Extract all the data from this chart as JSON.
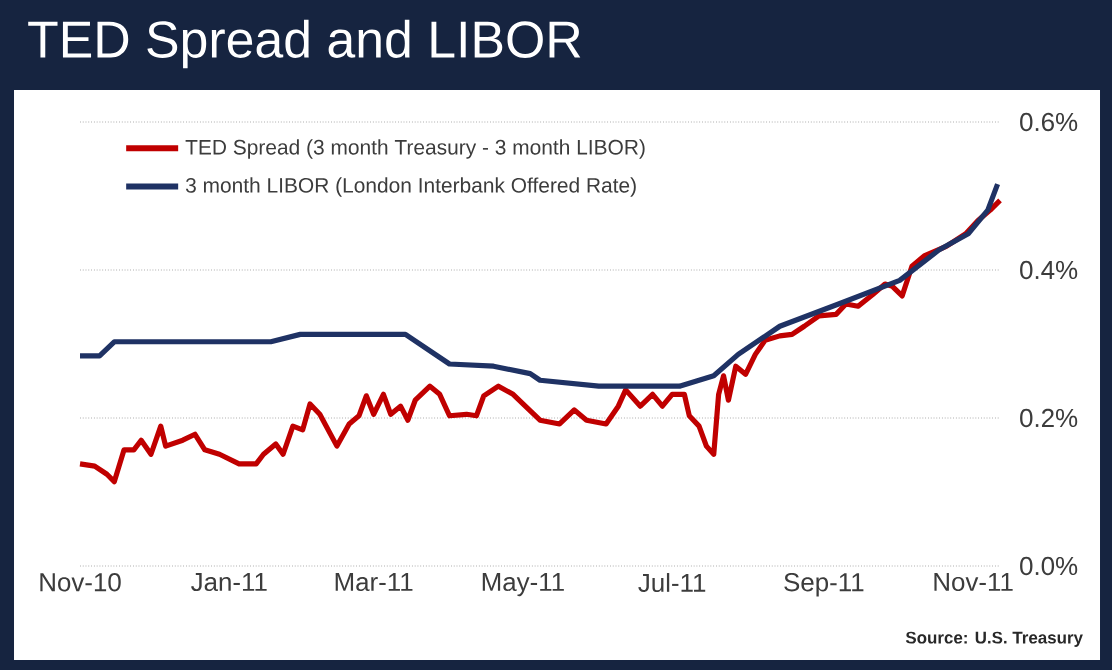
{
  "chart_data": {
    "type": "line",
    "title": "TED Spread and LIBOR",
    "x": [
      "2010-11-01",
      "2010-11-07",
      "2010-11-12",
      "2010-11-15",
      "2010-11-19",
      "2010-11-23",
      "2010-11-26",
      "2010-11-30",
      "2010-12-04",
      "2010-12-06",
      "2010-12-13",
      "2010-12-18",
      "2010-12-22",
      "2010-12-28",
      "2011-01-05",
      "2011-01-12",
      "2011-01-15",
      "2011-01-20",
      "2011-01-23",
      "2011-01-27",
      "2011-01-31",
      "2011-02-03",
      "2011-02-07",
      "2011-02-14",
      "2011-02-19",
      "2011-02-23",
      "2011-02-26",
      "2011-03-01",
      "2011-03-05",
      "2011-03-08",
      "2011-03-12",
      "2011-03-15",
      "2011-03-18",
      "2011-03-24",
      "2011-03-28",
      "2011-04-01",
      "2011-04-08",
      "2011-04-12",
      "2011-04-15",
      "2011-04-21",
      "2011-04-27",
      "2011-05-02",
      "2011-05-08",
      "2011-05-16",
      "2011-05-22",
      "2011-05-27",
      "2011-06-04",
      "2011-06-09",
      "2011-06-12",
      "2011-06-18",
      "2011-06-23",
      "2011-06-27",
      "2011-07-01",
      "2011-07-06",
      "2011-07-08",
      "2011-07-12",
      "2011-07-15",
      "2011-07-18",
      "2011-07-20",
      "2011-07-22",
      "2011-07-24",
      "2011-07-27",
      "2011-07-31",
      "2011-08-04",
      "2011-08-08",
      "2011-08-14",
      "2011-08-19",
      "2011-08-24",
      "2011-08-30",
      "2011-09-06",
      "2011-09-10",
      "2011-09-15",
      "2011-09-21",
      "2011-09-26",
      "2011-09-29",
      "2011-10-03",
      "2011-10-07",
      "2011-10-12",
      "2011-10-21",
      "2011-10-29",
      "2011-11-03",
      "2011-11-08",
      "2011-11-12"
    ],
    "series": [
      {
        "name": "TED Spread (3 month Treasury - 3 month LIBOR)",
        "color": "#c00000",
        "values": [
          0.138,
          0.135,
          0.124,
          0.114,
          0.157,
          0.157,
          0.17,
          0.151,
          0.189,
          0.162,
          0.17,
          0.178,
          0.157,
          0.151,
          0.138,
          0.138,
          0.151,
          0.165,
          0.151,
          0.189,
          0.184,
          0.219,
          0.205,
          0.162,
          0.192,
          0.203,
          0.23,
          0.205,
          0.232,
          0.205,
          0.216,
          0.197,
          0.224,
          0.243,
          0.232,
          0.203,
          0.205,
          0.203,
          0.23,
          0.243,
          0.232,
          0.216,
          0.197,
          0.192,
          0.211,
          0.197,
          0.192,
          0.216,
          0.238,
          0.216,
          0.232,
          0.216,
          0.232,
          0.232,
          0.203,
          0.189,
          0.162,
          0.151,
          0.232,
          0.257,
          0.224,
          0.27,
          0.259,
          0.286,
          0.305,
          0.311,
          0.313,
          0.324,
          0.338,
          0.34,
          0.354,
          0.351,
          0.367,
          0.381,
          0.378,
          0.365,
          0.405,
          0.419,
          0.432,
          0.449,
          0.467,
          0.481,
          0.494
        ]
      },
      {
        "name": "3 month LIBOR (London Interbank Offered Rate)",
        "color": "#1f3264",
        "x": [
          "2010-11-01",
          "2010-11-09",
          "2010-11-15",
          "2011-01-18",
          "2011-01-30",
          "2011-03-14",
          "2011-04-01",
          "2011-04-19",
          "2011-05-04",
          "2011-05-08",
          "2011-06-01",
          "2011-07-04",
          "2011-07-18",
          "2011-07-28",
          "2011-08-14",
          "2011-09-07",
          "2011-10-02",
          "2011-10-18",
          "2011-10-30",
          "2011-11-07",
          "2011-11-11"
        ],
        "values": [
          0.284,
          0.284,
          0.303,
          0.303,
          0.313,
          0.313,
          0.273,
          0.27,
          0.26,
          0.251,
          0.243,
          0.243,
          0.257,
          0.286,
          0.324,
          0.354,
          0.386,
          0.427,
          0.449,
          0.481,
          0.516
        ]
      }
    ],
    "xlim": [
      "2010-11-01",
      "2011-11-12"
    ],
    "xticks": [
      {
        "value": "2010-11-01",
        "label": "Nov-10"
      },
      {
        "value": "2011-01-01",
        "label": "Jan-11"
      },
      {
        "value": "2011-03-01",
        "label": "Mar-11"
      },
      {
        "value": "2011-05-01",
        "label": "May-11"
      },
      {
        "value": "2011-07-01",
        "label": "Jul-11"
      },
      {
        "value": "2011-09-01",
        "label": "Sep-11"
      },
      {
        "value": "2011-11-01",
        "label": "Nov-11"
      }
    ],
    "ylim": [
      0,
      0.6
    ],
    "yticks": [
      {
        "value": 0,
        "label": "0.0%"
      },
      {
        "value": 0.2,
        "label": "0.2%"
      },
      {
        "value": 0.4,
        "label": "0.4%"
      },
      {
        "value": 0.6,
        "label": "0.6%"
      }
    ],
    "grid": "y",
    "legend": "top left",
    "marker": "none",
    "line_style": "solid",
    "annotations": [
      "Source:  U.S. Treasury"
    ]
  }
}
